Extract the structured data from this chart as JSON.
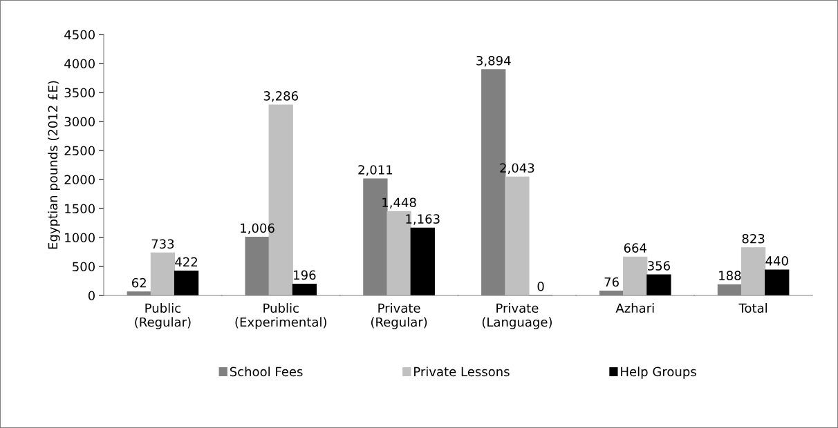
{
  "chart_data": {
    "type": "bar",
    "ylabel": "Egyptian pounds (2012 £E)",
    "categories": [
      "Public\n(Regular)",
      "Public\n(Experimental)",
      "Private\n(Regular)",
      "Private\n(Language)",
      "Azhari",
      "Total"
    ],
    "series": [
      {
        "name": "School Fees",
        "color": "#808080",
        "values": [
          62,
          1006,
          2011,
          3894,
          76,
          188
        ],
        "value_labels": [
          "62",
          "1,006",
          "2,011",
          "3,894",
          "76",
          "188"
        ]
      },
      {
        "name": "Private Lessons",
        "color": "#c0c0c0",
        "values": [
          733,
          3286,
          1448,
          2043,
          664,
          823
        ],
        "value_labels": [
          "733",
          "3,286",
          "1,448",
          "2,043",
          "664",
          "823"
        ]
      },
      {
        "name": "Help Groups",
        "color": "#000000",
        "values": [
          422,
          196,
          1163,
          0,
          356,
          440
        ],
        "value_labels": [
          "422",
          "196",
          "1,163",
          "0",
          "356",
          "440"
        ]
      }
    ],
    "ylim": [
      0,
      4500
    ],
    "yticks": [
      0,
      500,
      1000,
      1500,
      2000,
      2500,
      3000,
      3500,
      4000,
      4500
    ],
    "grid": false,
    "legend": "bottom"
  }
}
